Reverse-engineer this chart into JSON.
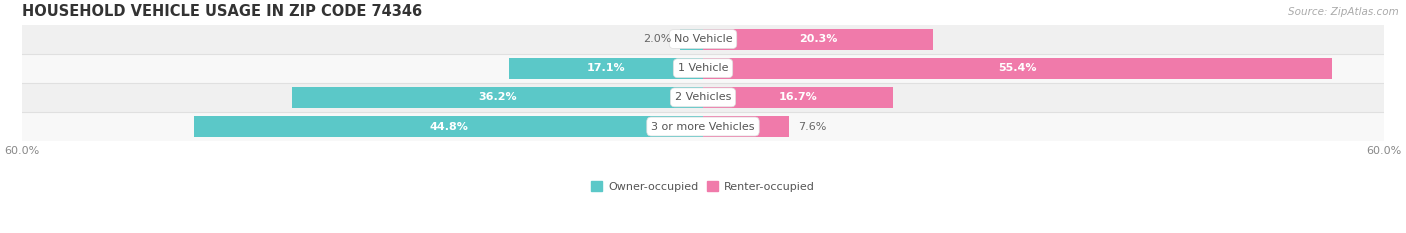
{
  "title": "HOUSEHOLD VEHICLE USAGE IN ZIP CODE 74346",
  "source": "Source: ZipAtlas.com",
  "categories": [
    "No Vehicle",
    "1 Vehicle",
    "2 Vehicles",
    "3 or more Vehicles"
  ],
  "owner_values": [
    2.0,
    17.1,
    36.2,
    44.8
  ],
  "renter_values": [
    20.3,
    55.4,
    16.7,
    7.6
  ],
  "owner_color": "#5bc8c8",
  "renter_color": "#f07aaa",
  "owner_label": "Owner-occupied",
  "renter_label": "Renter-occupied",
  "axis_max": 60.0,
  "title_fontsize": 10.5,
  "value_fontsize": 8.0,
  "cat_fontsize": 8.0,
  "tick_fontsize": 8.0,
  "source_fontsize": 7.5,
  "legend_fontsize": 8.0,
  "bar_height": 0.72,
  "background_color": "#ffffff",
  "row_bg_colors": [
    "#f0f0f0",
    "#f8f8f8",
    "#f0f0f0",
    "#f8f8f8"
  ],
  "separator_color": "#e0e0e0",
  "value_color_inside": "#ffffff",
  "value_color_outside": "#666666",
  "cat_label_color": "#555555"
}
